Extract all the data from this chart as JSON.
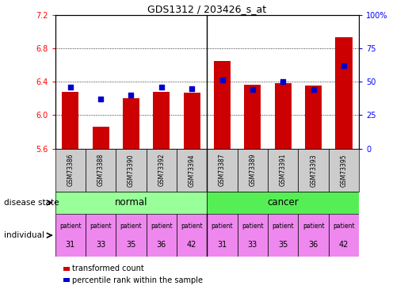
{
  "title": "GDS1312 / 203426_s_at",
  "samples": [
    "GSM73386",
    "GSM73388",
    "GSM73390",
    "GSM73392",
    "GSM73394",
    "GSM73387",
    "GSM73389",
    "GSM73391",
    "GSM73393",
    "GSM73395"
  ],
  "transformed_count": [
    6.28,
    5.86,
    6.2,
    6.28,
    6.27,
    6.65,
    6.36,
    6.38,
    6.35,
    6.93
  ],
  "percentile_rank": [
    46,
    37,
    40,
    46,
    45,
    51,
    44,
    50,
    44,
    62
  ],
  "ylim": [
    5.6,
    7.2
  ],
  "ylim_right": [
    0,
    100
  ],
  "yticks_left": [
    5.6,
    6.0,
    6.4,
    6.8,
    7.2
  ],
  "yticks_right": [
    0,
    25,
    50,
    75,
    100
  ],
  "disease_state": [
    "normal",
    "normal",
    "normal",
    "normal",
    "normal",
    "cancer",
    "cancer",
    "cancer",
    "cancer",
    "cancer"
  ],
  "individual": [
    "31",
    "33",
    "35",
    "36",
    "42",
    "31",
    "33",
    "35",
    "36",
    "42"
  ],
  "bar_color": "#cc0000",
  "dot_color": "#0000cc",
  "normal_color": "#99ff99",
  "cancer_color": "#55ee55",
  "individual_color": "#ee88ee",
  "sample_bg": "#cccccc",
  "legend_red_label": "transformed count",
  "legend_blue_label": "percentile rank within the sample"
}
